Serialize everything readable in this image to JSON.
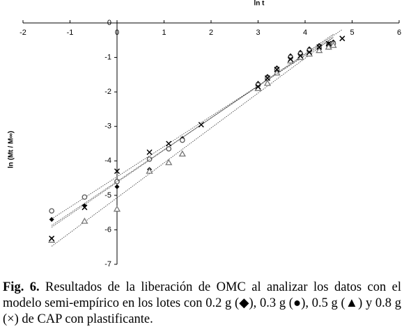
{
  "chart_data": {
    "type": "scatter",
    "x_label": "ln t",
    "y_label": "ln (Mt / M∞)",
    "xlim": [
      -2,
      6
    ],
    "xticks": [
      -2,
      -1,
      0,
      1,
      2,
      3,
      4,
      5,
      6
    ],
    "ylim": [
      -7,
      0
    ],
    "yticks": [
      -7,
      -6,
      -5,
      -4,
      -3,
      -2,
      -1,
      0
    ],
    "trendlines": true,
    "series": [
      {
        "marker": "diamond",
        "color": "#000000",
        "x": [
          -1.39,
          -0.69,
          0,
          0.69,
          1.1,
          1.39,
          3.0,
          3.2,
          3.4,
          3.69,
          3.9,
          4.09,
          4.3,
          4.5,
          4.6
        ],
        "values": [
          -5.7,
          -5.3,
          -4.75,
          -4.25,
          -3.65,
          -3.35,
          -1.75,
          -1.55,
          -1.3,
          -0.95,
          -0.85,
          -0.75,
          -0.65,
          -0.6,
          -0.55
        ]
      },
      {
        "marker": "circle",
        "color": "#555555",
        "x": [
          -1.39,
          -0.69,
          0,
          0.69,
          1.1,
          1.39,
          3.0,
          3.2,
          3.4,
          3.69,
          3.9,
          4.09,
          4.3,
          4.5,
          4.6
        ],
        "values": [
          -5.45,
          -5.05,
          -4.6,
          -3.95,
          -3.65,
          -3.4,
          -1.8,
          -1.6,
          -1.35,
          -1.0,
          -0.9,
          -0.8,
          -0.7,
          -0.65,
          -0.6
        ]
      },
      {
        "marker": "triangle",
        "color": "#777777",
        "x": [
          -1.39,
          -0.69,
          0,
          0.69,
          1.1,
          1.39,
          3.0,
          3.2,
          3.4,
          3.69,
          3.9,
          4.09,
          4.3,
          4.5,
          4.6
        ],
        "values": [
          -6.3,
          -5.75,
          -5.4,
          -4.3,
          -4.05,
          -3.8,
          -1.9,
          -1.75,
          -1.45,
          -1.1,
          -1.0,
          -0.9,
          -0.8,
          -0.7,
          -0.65
        ]
      },
      {
        "marker": "cross",
        "color": "#000000",
        "x": [
          -1.39,
          -0.69,
          0,
          0.69,
          1.1,
          1.79,
          3.0,
          3.2,
          3.4,
          3.69,
          3.9,
          4.09,
          4.3,
          4.5,
          4.79
        ],
        "values": [
          -6.25,
          -5.35,
          -4.3,
          -3.75,
          -3.5,
          -2.95,
          -1.85,
          -1.6,
          -1.35,
          -1.05,
          -0.95,
          -0.85,
          -0.7,
          -0.6,
          -0.45
        ]
      }
    ]
  },
  "caption": {
    "label": "Fig. 6.",
    "text": " Resultados de la liberación de OMC al analizar los datos con el modelo semi-empírico en los lotes con 0.2 g (◆), 0.3 g (●), 0.5 g (▲) y 0.8 g (×) de CAP con plastificante."
  }
}
